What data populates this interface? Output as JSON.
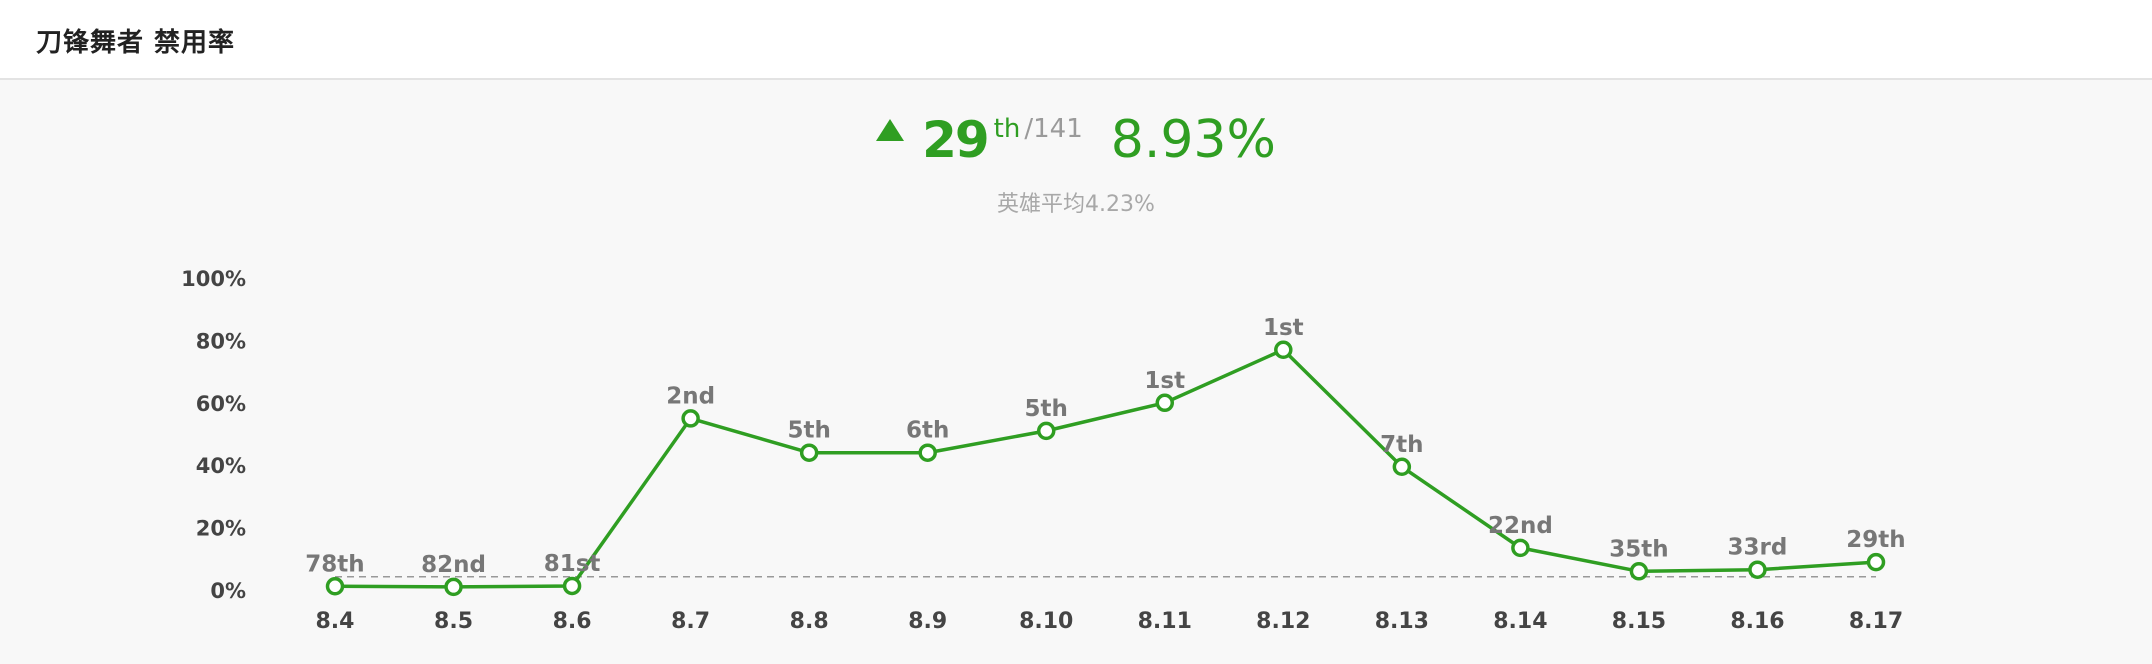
{
  "header": {
    "title": "刀锋舞者 禁用率"
  },
  "summary": {
    "rank": "29",
    "rank_suffix": "th",
    "total": "/141",
    "rate": "8.93%",
    "hero_average": "英雄平均4.23%",
    "trend": "up"
  },
  "colors": {
    "line": "#2f9e22",
    "average_line": "#999999",
    "background": "#f8f8f8"
  },
  "chart_data": {
    "type": "line",
    "title": "",
    "xlabel": "",
    "ylabel": "",
    "x": [
      "8.4",
      "8.5",
      "8.6",
      "8.7",
      "8.8",
      "8.9",
      "8.10",
      "8.11",
      "8.12",
      "8.13",
      "8.14",
      "8.15",
      "8.16",
      "8.17"
    ],
    "series": [
      {
        "values": [
          1.2,
          1.0,
          1.3,
          55,
          44,
          44,
          51,
          60,
          77,
          39.5,
          13.5,
          6,
          6.5,
          8.93
        ],
        "ranks": [
          "78th",
          "82nd",
          "81st",
          "2nd",
          "5th",
          "6th",
          "5th",
          "1st",
          "1st",
          "7th",
          "22nd",
          "35th",
          "33rd",
          "29th"
        ]
      }
    ],
    "average_line": 4.23,
    "yticks": [
      "100%",
      "80%",
      "60%",
      "40%",
      "20%",
      "0%"
    ],
    "ylim": [
      0,
      100
    ],
    "grid": false,
    "legend": "none"
  }
}
